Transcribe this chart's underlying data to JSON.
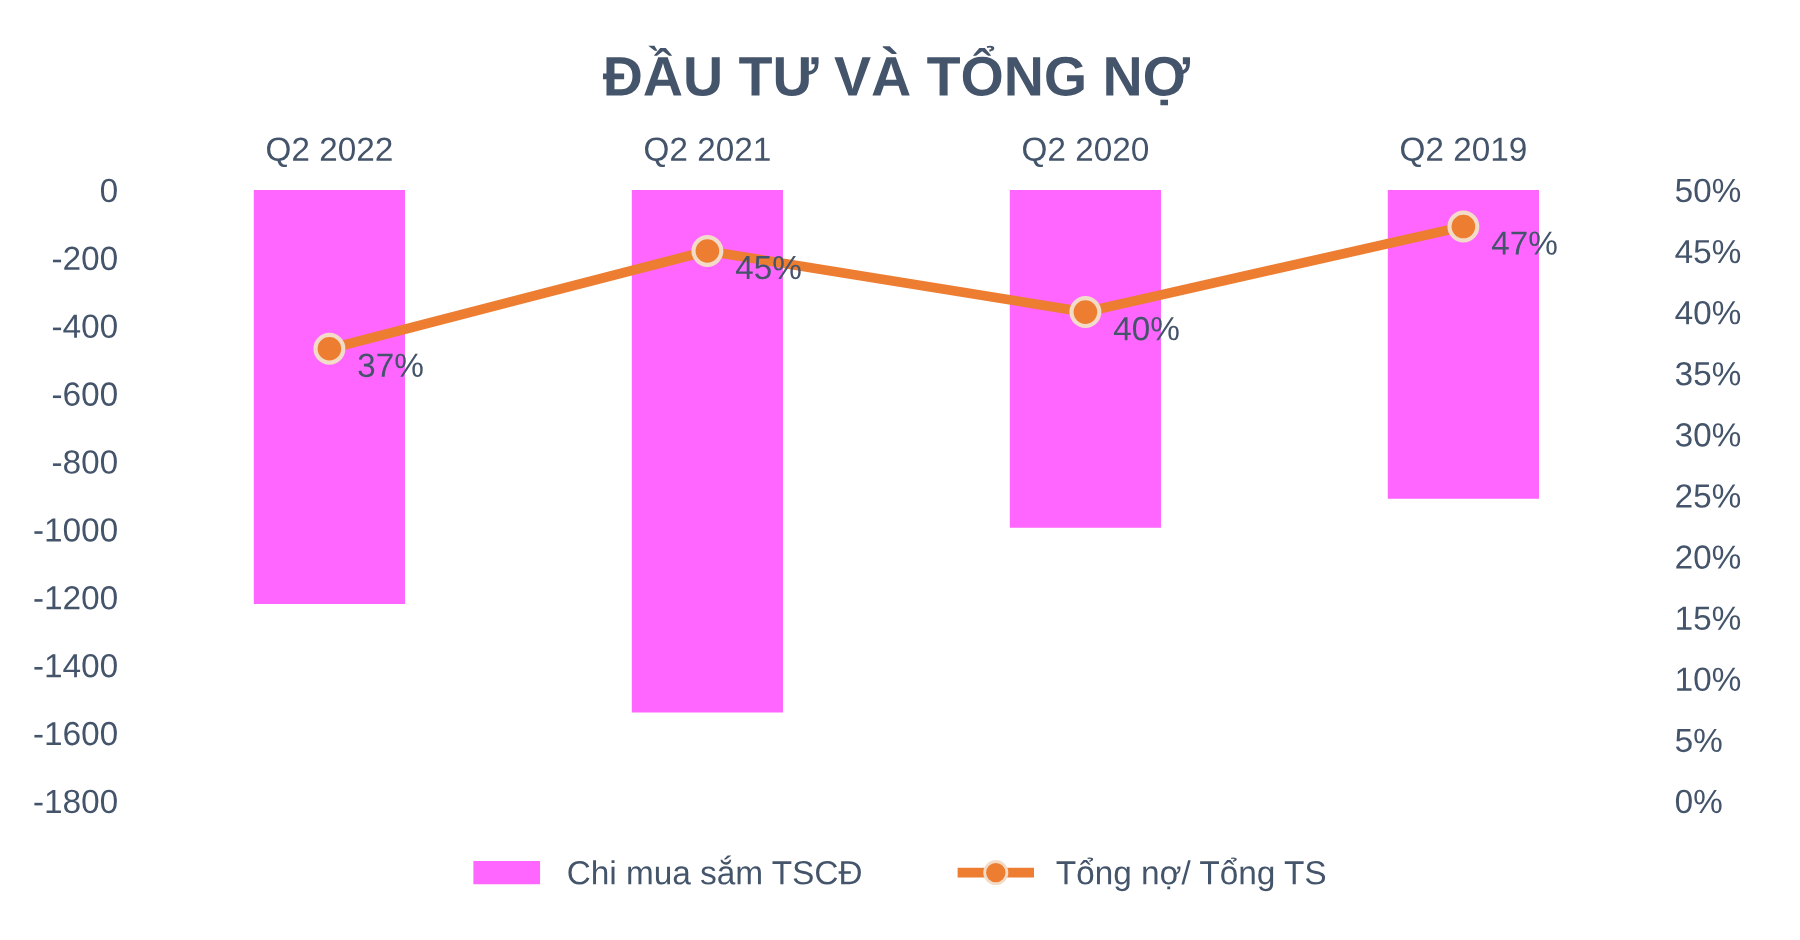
{
  "chart_data": {
    "type": "bar",
    "title": "ĐẦU TƯ VÀ TỔNG NỢ",
    "categories": [
      "Q2 2022",
      "Q2 2021",
      "Q2 2020",
      "Q2 2019"
    ],
    "series": [
      {
        "name": "Chi mua sắm TSCĐ",
        "color": "#ff66ff",
        "values": [
          -1220,
          -1540,
          -995,
          -910
        ]
      },
      {
        "name": "Tổng nợ/ Tổng TS",
        "type": "line",
        "axis": "y2",
        "color": "#ed7d31",
        "marker": "circle",
        "values": [
          37,
          45,
          40,
          47
        ],
        "value_labels": [
          "37%",
          "45%",
          "40%",
          "47%"
        ]
      }
    ],
    "ylim": [
      -1800,
      0
    ],
    "yticks": [
      -1800,
      -1600,
      -1400,
      -1200,
      -1000,
      -800,
      -600,
      -400,
      -200,
      0
    ],
    "y2lim": [
      0,
      50
    ],
    "y2ticks": [
      {
        "value": 0,
        "label": "0%"
      },
      {
        "value": 5,
        "label": "5%"
      },
      {
        "value": 10,
        "label": "10%"
      },
      {
        "value": 15,
        "label": "15%"
      },
      {
        "value": 20,
        "label": "20%"
      },
      {
        "value": 25,
        "label": "25%"
      },
      {
        "value": 30,
        "label": "30%"
      },
      {
        "value": 35,
        "label": "35%"
      },
      {
        "value": 40,
        "label": "40%"
      },
      {
        "value": 45,
        "label": "45%"
      },
      {
        "value": 50,
        "label": "50%"
      }
    ],
    "grid": false,
    "legend": "bottom"
  }
}
